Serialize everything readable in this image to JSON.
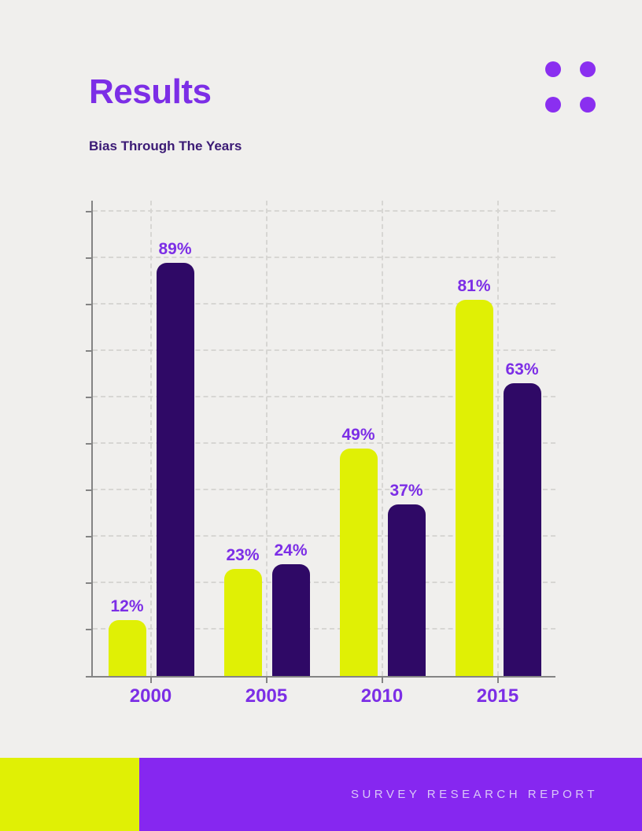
{
  "page": {
    "title": "Results",
    "subtitle": "Bias Through The Years",
    "footer": {
      "label": "SURVEY RESEARCH REPORT"
    }
  },
  "colors": {
    "background": "#f0efed",
    "accent": "#7c2ee6",
    "dark_bar": "#2f0966",
    "yellow_bar": "#e0f005",
    "footer_purple": "#8627f0",
    "footer_text": "#dac8f8",
    "subtitle_text": "#3b1a75",
    "gridline": "#d7d6d3",
    "axis": "#848484",
    "dots": "#8a2ff0"
  },
  "chart_data": {
    "type": "bar",
    "title": "Bias Through The Years",
    "categories": [
      "2000",
      "2005",
      "2010",
      "2015"
    ],
    "series": [
      {
        "name": "yellow",
        "color": "#e0f005",
        "values": [
          12,
          23,
          49,
          81
        ]
      },
      {
        "name": "dark-purple",
        "color": "#2f0966",
        "values": [
          89,
          24,
          37,
          63
        ]
      }
    ],
    "value_suffix": "%",
    "ylim": [
      0,
      100
    ],
    "y_tick_step": 10,
    "grid": true,
    "legend": "none",
    "value_labels": true
  }
}
